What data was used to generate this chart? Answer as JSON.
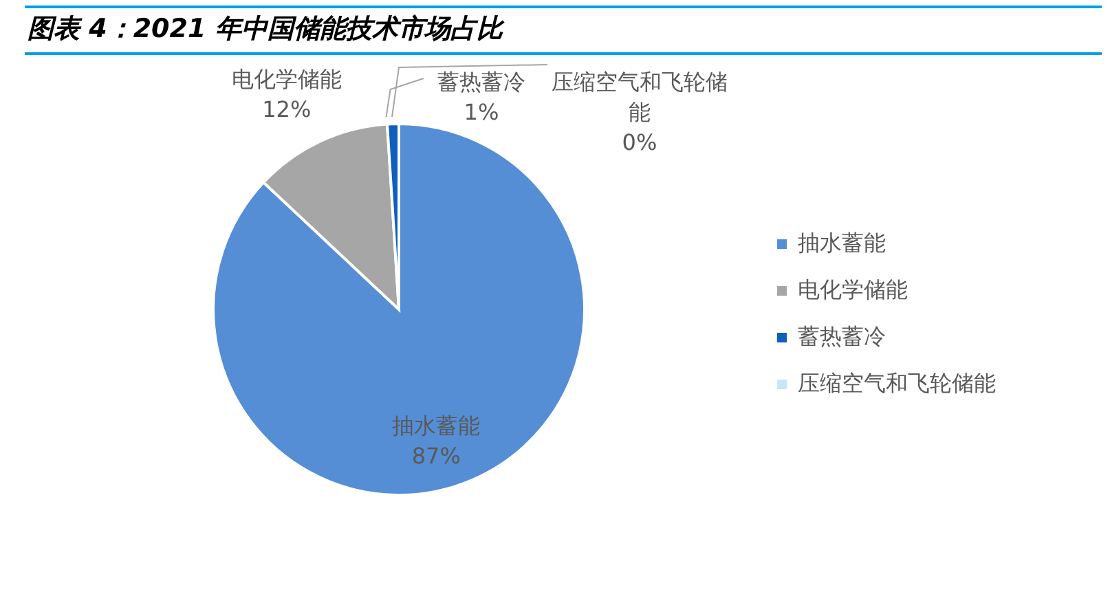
{
  "chart_data": {
    "type": "pie",
    "title": "图表 4：2021 年中国储能技术市场占比",
    "categories": [
      "抽水蓄能",
      "电化学储能",
      "蓄热蓄冷",
      "压缩空气和飞轮储能"
    ],
    "values": [
      87,
      12,
      1,
      0
    ],
    "colors": [
      "#558ed5",
      "#a6a6a6",
      "#0f5fbf",
      "#c6e7f7"
    ],
    "value_labels": [
      "87%",
      "12%",
      "1%",
      "0%"
    ],
    "legend": "right"
  }
}
